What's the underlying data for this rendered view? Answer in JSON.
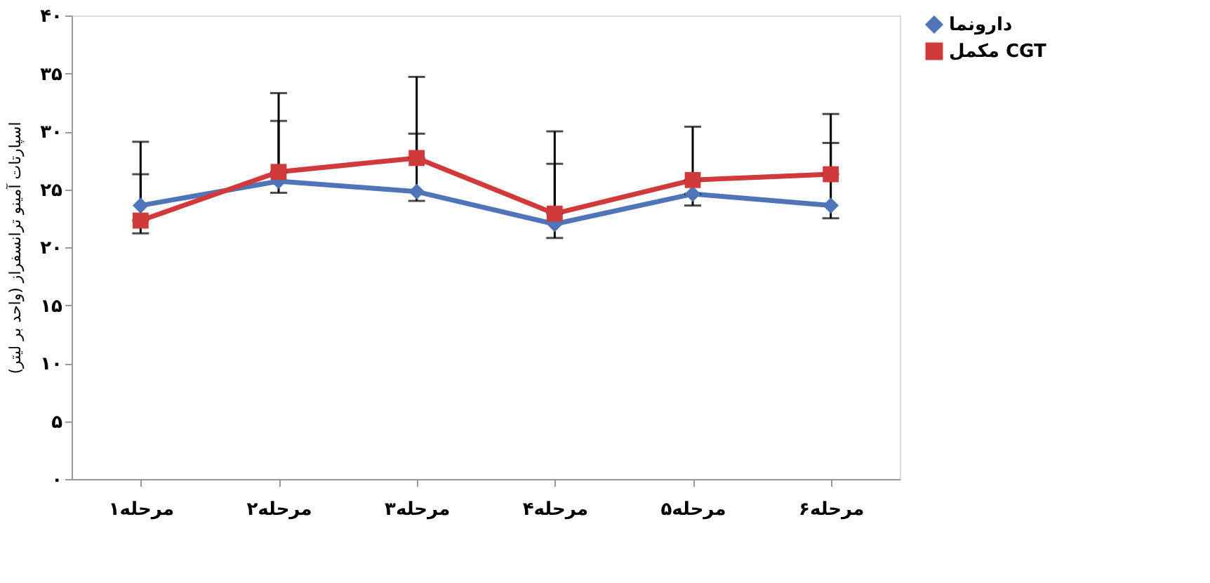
{
  "chart_data": {
    "type": "line",
    "ylabel": "اسپارتات آمینو ترانسفراز (واحد بر لیتر)",
    "categories": [
      "مرحله۱",
      "مرحله۲",
      "مرحله۳",
      "مرحله۴",
      "مرحله۵",
      "مرحله۶"
    ],
    "series": [
      {
        "name": "دارونما",
        "color": "#4f74b8",
        "marker": "diamond",
        "values": [
          23.6,
          25.7,
          24.8,
          22.0,
          24.6,
          23.6
        ],
        "errors": [
          [
            21.2,
            26.3
          ],
          [
            24.7,
            30.9
          ],
          [
            24.0,
            29.8
          ],
          [
            20.8,
            27.2
          ],
          [
            23.6,
            24.6
          ],
          [
            22.5,
            29.0
          ]
        ]
      },
      {
        "name": "مکمل CGT",
        "color": "#d03a3a",
        "marker": "square",
        "values": [
          22.3,
          26.5,
          27.7,
          22.9,
          25.8,
          26.3
        ],
        "errors": [
          [
            22.3,
            29.1
          ],
          [
            26.5,
            33.3
          ],
          [
            27.7,
            34.7
          ],
          [
            22.9,
            30.0
          ],
          [
            25.8,
            30.4
          ],
          [
            26.3,
            31.5
          ]
        ]
      }
    ],
    "ylim": [
      0,
      40
    ],
    "yticks": [
      {
        "value": 0,
        "label": "۰"
      },
      {
        "value": 5,
        "label": "۵"
      },
      {
        "value": 10,
        "label": "۱۰"
      },
      {
        "value": 15,
        "label": "۱۵"
      },
      {
        "value": 20,
        "label": "۲۰"
      },
      {
        "value": 25,
        "label": "۲۵"
      },
      {
        "value": 30,
        "label": "۳۰"
      },
      {
        "value": 35,
        "label": "۳۵"
      },
      {
        "value": 40,
        "label": "۴۰"
      }
    ],
    "grid": false,
    "legend": "right",
    "line_style": "solid"
  }
}
